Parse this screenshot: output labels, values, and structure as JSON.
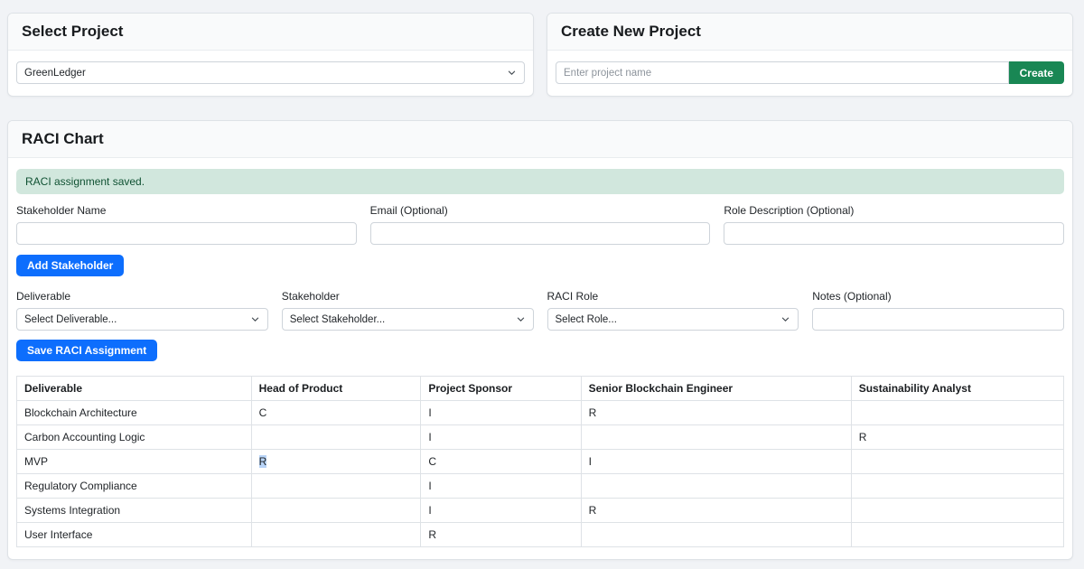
{
  "colors": {
    "primary_button": "#0d6efd",
    "success_button": "#198754",
    "alert_background": "#d1e7dd",
    "alert_text": "#0f5132",
    "text_selection": "#b8d4f8"
  },
  "select_project": {
    "title": "Select Project",
    "selected_value": "GreenLedger"
  },
  "create_project": {
    "title": "Create New Project",
    "placeholder": "Enter project name",
    "button_label": "Create"
  },
  "raci": {
    "title": "RACI Chart",
    "alert_message": "RACI assignment saved.",
    "stakeholder_form": {
      "name_label": "Stakeholder Name",
      "email_label": "Email (Optional)",
      "role_description_label": "Role Description (Optional)",
      "add_button": "Add Stakeholder"
    },
    "assignment_form": {
      "deliverable_label": "Deliverable",
      "deliverable_value": "Select Deliverable...",
      "stakeholder_label": "Stakeholder",
      "stakeholder_value": "Select Stakeholder...",
      "raci_role_label": "RACI Role",
      "raci_role_value": "Select Role...",
      "notes_label": "Notes (Optional)",
      "save_button": "Save RACI Assignment"
    },
    "table": {
      "columns": [
        "Deliverable",
        "Head of Product",
        "Project Sponsor",
        "Senior Blockchain Engineer",
        "Sustainability Analyst"
      ],
      "rows": [
        {
          "deliverable": "Blockchain Architecture",
          "cells": [
            "C",
            "I",
            "R",
            ""
          ]
        },
        {
          "deliverable": "Carbon Accounting Logic",
          "cells": [
            "",
            "I",
            "",
            "R"
          ]
        },
        {
          "deliverable": "MVP",
          "cells": [
            "R",
            "C",
            "I",
            ""
          ],
          "highlight": [
            0
          ]
        },
        {
          "deliverable": "Regulatory Compliance",
          "cells": [
            "",
            "I",
            "",
            ""
          ]
        },
        {
          "deliverable": "Systems Integration",
          "cells": [
            "",
            "I",
            "R",
            ""
          ]
        },
        {
          "deliverable": "User Interface",
          "cells": [
            "",
            "R",
            "",
            ""
          ]
        }
      ]
    }
  }
}
